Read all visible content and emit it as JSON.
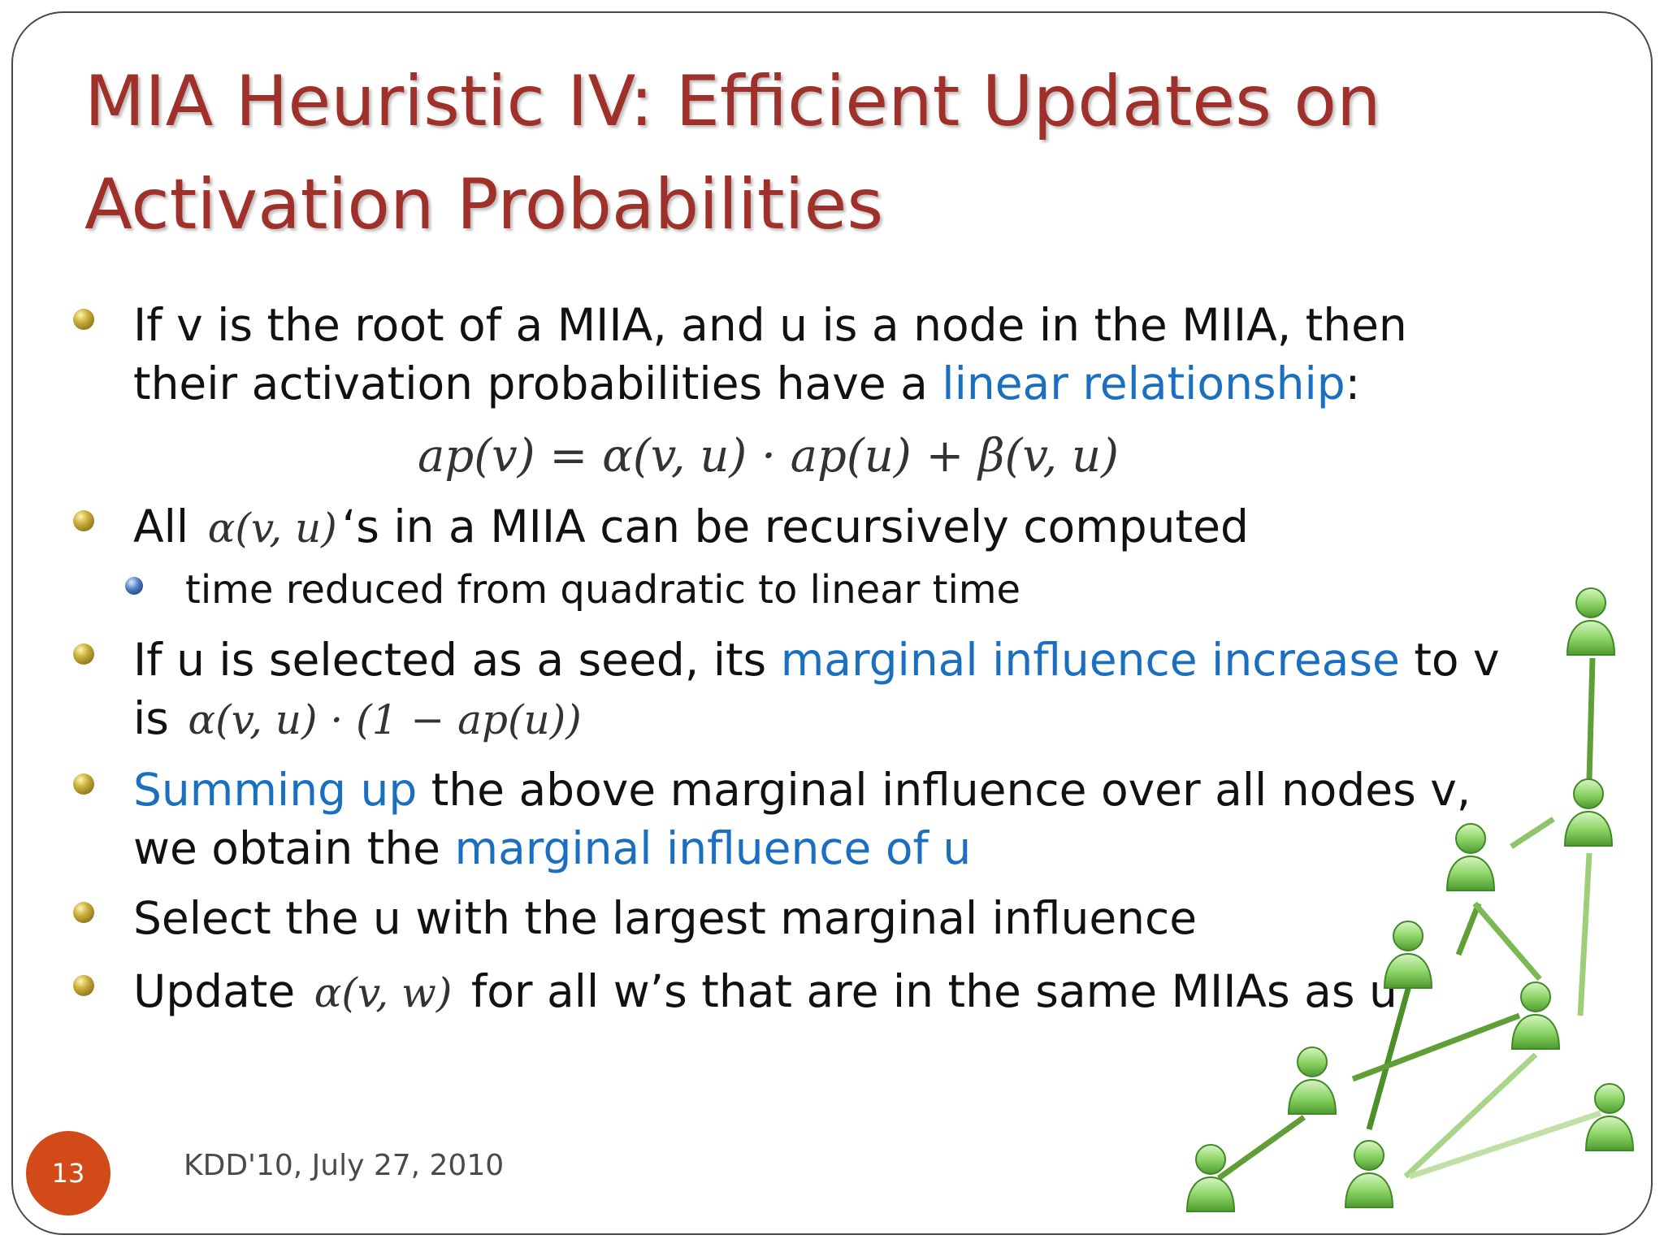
{
  "slide": {
    "title_line1": "MIA Heuristic IV: Efficient Updates on",
    "title_line2": "Activation Probabilities",
    "bullets": [
      {
        "line1": "If v is the root of a MIIA, and u is a node in the MIIA, then",
        "line2_prefix": "their activation probabilities have a ",
        "line2_highlight": "linear relationship",
        "line2_suffix": ":"
      },
      {
        "prefix": "All ",
        "suffix": "‘s in a MIIA can be recursively computed",
        "sub": "time reduced from quadratic to linear time"
      },
      {
        "line1_prefix": "If u is selected as a seed, its ",
        "line1_highlight": "marginal influence increase",
        "line1_suffix": " to v",
        "line2_prefix": "is "
      },
      {
        "line1_highlight": "Summing up",
        "line1_suffix": " the above marginal influence over all nodes v,",
        "line2_prefix": "we obtain the ",
        "line2_highlight": "marginal influence of u"
      },
      {
        "text": "Select the u with the largest marginal influence"
      },
      {
        "prefix": "Update ",
        "suffix": " for all w’s that are in the same MIIAs as u"
      }
    ],
    "math": {
      "formula_main": "ap(v) = α(v, u) · ap(u) + β(v, u)",
      "alpha_vu": "α(v, u)",
      "increase_expr": "α(v, u) · (1 − ap(u))",
      "alpha_vw": "α(v, w)"
    },
    "footer": {
      "page_number": "13",
      "date": "KDD'10, July 27, 2010"
    },
    "colors": {
      "title": "#a0302a",
      "highlight": "#1b6fc0",
      "page_badge": "#d24a18",
      "network_green": "#5fae3c"
    },
    "icons": [
      "user-node-icon",
      "bullet-dot-icon"
    ]
  }
}
